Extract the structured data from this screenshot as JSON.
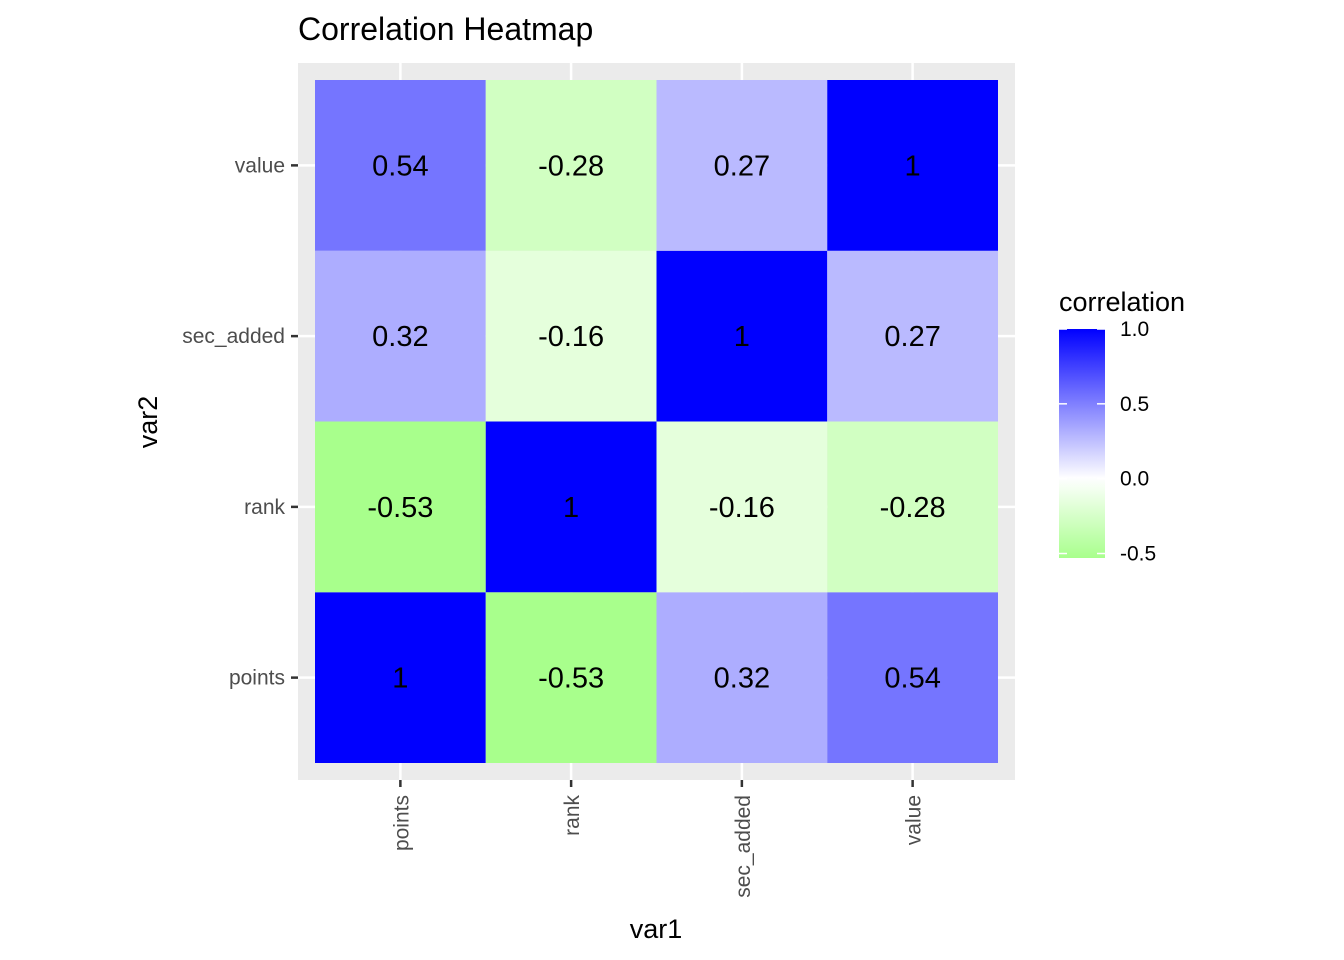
{
  "chart_data": {
    "type": "heatmap",
    "title": "Correlation Heatmap",
    "xlabel": "var1",
    "ylabel": "var2",
    "x_categories": [
      "points",
      "rank",
      "sec_added",
      "value"
    ],
    "y_categories": [
      "points",
      "rank",
      "sec_added",
      "value"
    ],
    "values": [
      [
        1,
        -0.53,
        0.32,
        0.54
      ],
      [
        -0.53,
        1,
        -0.16,
        -0.28
      ],
      [
        0.32,
        -0.16,
        1,
        0.27
      ],
      [
        0.54,
        -0.28,
        0.27,
        1
      ]
    ],
    "cell_labels": [
      [
        "1",
        "-0.53",
        "0.32",
        "0.54"
      ],
      [
        "-0.53",
        "1",
        "-0.16",
        "-0.28"
      ],
      [
        "0.32",
        "-0.16",
        "1",
        "0.27"
      ],
      [
        "0.54",
        "-0.28",
        "0.27",
        "1"
      ]
    ],
    "legend": {
      "title": "correlation",
      "placement": "right",
      "range": [
        -0.53,
        1
      ],
      "breaks": [
        -0.5,
        0,
        0.5,
        1
      ],
      "break_labels": [
        "-0.5",
        "0.0",
        "0.5",
        "1.0"
      ]
    },
    "colors": {
      "low": "#a8ff8c",
      "mid": "#ffffff",
      "high": "#0000ff",
      "panel_background": "#ebebeb",
      "grid": "#ffffff"
    },
    "grid": true
  }
}
